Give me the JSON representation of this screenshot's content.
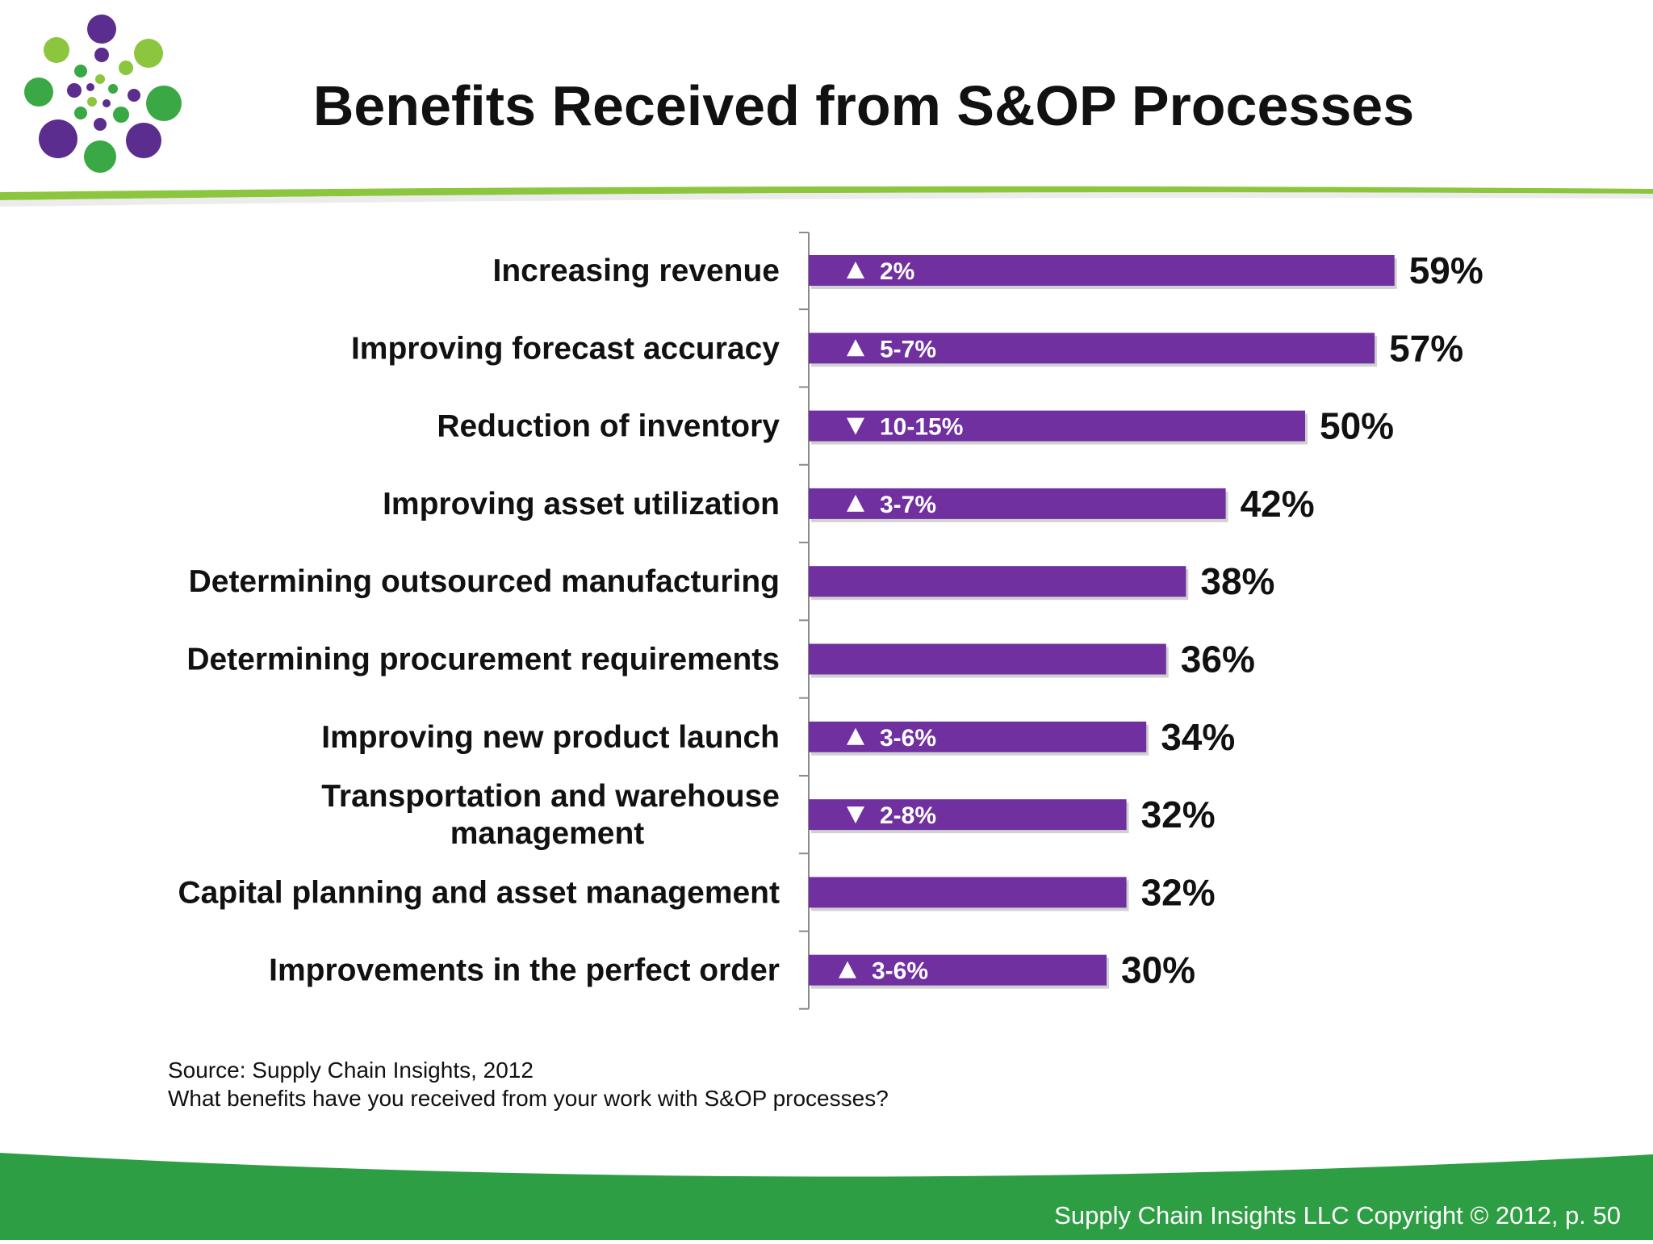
{
  "title": "Benefits Received from S&OP Processes",
  "source": "Source: Supply Chain Insights, 2012",
  "question": "What benefits have you received from your work with S&OP processes?",
  "copyright": "Supply Chain Insights LLC Copyright © 2012, p. 50",
  "colors": {
    "bar": "#7030a0",
    "accent_green": "#8cc63f",
    "footer_green": "#2e9e44",
    "logo_purple": "#5b2d8e",
    "logo_green": "#3aa845"
  },
  "chart_data": {
    "type": "bar",
    "orientation": "horizontal",
    "categories": [
      "Increasing revenue",
      "Improving forecast accuracy",
      "Reduction of inventory",
      "Improving asset utilization",
      "Determining outsourced manufacturing",
      "Determining procurement requirements",
      "Improving new product launch",
      "Transportation and warehouse management",
      "Capital planning and asset management",
      "Improvements in the perfect order"
    ],
    "category_lines": [
      [
        "Increasing revenue"
      ],
      [
        "Improving forecast accuracy"
      ],
      [
        "Reduction of inventory"
      ],
      [
        "Improving asset utilization"
      ],
      [
        "Determining outsourced manufacturing"
      ],
      [
        "Determining procurement requirements"
      ],
      [
        "Improving new product launch"
      ],
      [
        "Transportation and warehouse",
        "management"
      ],
      [
        "Capital planning and asset management"
      ],
      [
        "Improvements in the perfect order"
      ]
    ],
    "values": [
      59,
      57,
      50,
      42,
      38,
      36,
      34,
      32,
      32,
      30
    ],
    "value_labels": [
      "59%",
      "57%",
      "50%",
      "42%",
      "38%",
      "36%",
      "34%",
      "32%",
      "32%",
      "30%"
    ],
    "changes": [
      {
        "direction": "up",
        "text": "2%"
      },
      {
        "direction": "up",
        "text": "5-7%"
      },
      {
        "direction": "down",
        "text": "10-15%"
      },
      {
        "direction": "up",
        "text": "3-7%"
      },
      null,
      null,
      {
        "direction": "up",
        "text": "3-6%"
      },
      {
        "direction": "down",
        "text": "2-8%"
      },
      null,
      {
        "direction": "up",
        "text": "3-6%"
      }
    ],
    "xlim": [
      0,
      60
    ],
    "legend": "none",
    "grid": false
  }
}
